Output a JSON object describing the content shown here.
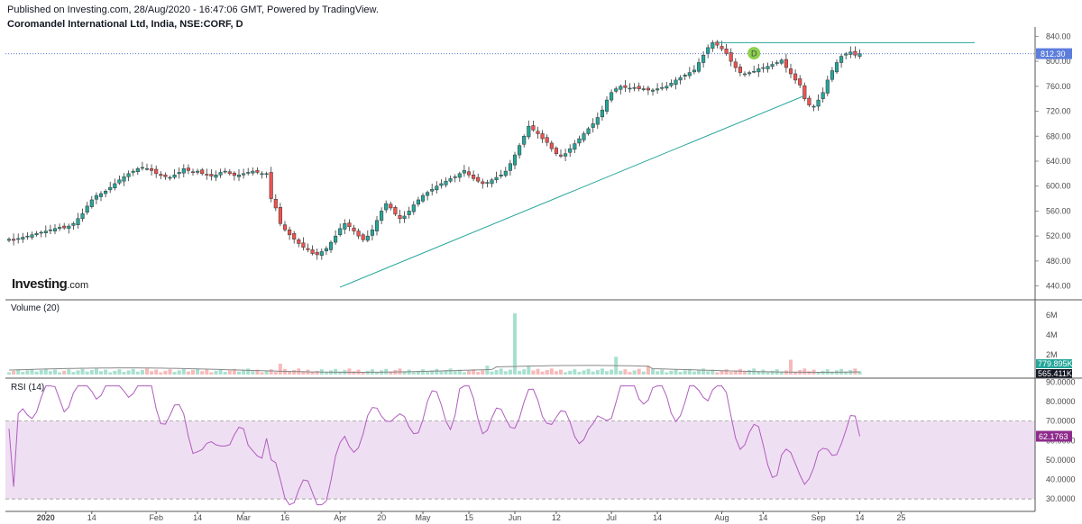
{
  "header": {
    "published": "Published on Investing.com, 28/Aug/2020 - 16:47:06 GMT, Powered by TradingView.",
    "instrument": "Coromandel International Ltd, India, NSE:CORF, D"
  },
  "logo": {
    "brand": "Investing",
    "suffix": ".com"
  },
  "colors": {
    "up": "#26a69a",
    "down": "#ef5350",
    "trendline": "#26a69a",
    "current_price": "#5c7ddc",
    "rsi_line": "#b05cc0",
    "rsi_band": "#efdff2",
    "vol_up": "#a8e0cf",
    "vol_down": "#f7b9b9",
    "vol_ma": "#888888",
    "marker": "#8bd14b"
  },
  "chart_data": [
    {
      "type": "candlestick",
      "pane": "price",
      "ylim": [
        425,
        855
      ],
      "y_ticks": [
        "840.00",
        "800.00",
        "760.00",
        "720.00",
        "680.00",
        "640.00",
        "600.00",
        "560.00",
        "520.00",
        "480.00",
        "440.00"
      ],
      "current_price_label": "812.30",
      "current_price": 812.3,
      "marker_label": "D",
      "marker_value": 813,
      "closes": [
        515,
        513,
        516,
        518,
        520,
        522,
        524,
        526,
        528,
        530,
        532,
        534,
        533,
        536,
        540,
        548,
        556,
        568,
        578,
        585,
        588,
        592,
        598,
        604,
        610,
        615,
        620,
        624,
        628,
        630,
        628,
        625,
        620,
        617,
        615,
        614,
        618,
        622,
        628,
        625,
        622,
        624,
        620,
        618,
        616,
        618,
        622,
        624,
        620,
        617,
        618,
        620,
        622,
        624,
        622,
        620,
        620,
        580,
        565,
        540,
        530,
        522,
        515,
        508,
        502,
        498,
        492,
        490,
        495,
        500,
        510,
        520,
        532,
        540,
        535,
        528,
        520,
        514,
        520,
        530,
        545,
        560,
        572,
        565,
        555,
        548,
        552,
        560,
        570,
        578,
        585,
        590,
        595,
        600,
        604,
        608,
        612,
        615,
        620,
        625,
        618,
        612,
        608,
        604,
        606,
        610,
        614,
        618,
        624,
        636,
        650,
        665,
        680,
        696,
        690,
        684,
        676,
        670,
        660,
        652,
        648,
        652,
        660,
        668,
        676,
        684,
        692,
        700,
        710,
        722,
        738,
        750,
        756,
        760,
        758,
        757,
        758,
        756,
        756,
        754,
        754,
        756,
        758,
        760,
        765,
        770,
        774,
        778,
        782,
        786,
        798,
        810,
        822,
        830,
        826,
        820,
        812,
        800,
        790,
        782,
        780,
        782,
        784,
        788,
        790,
        792,
        795,
        798,
        802,
        790,
        780,
        770,
        762,
        740,
        730,
        728,
        738,
        750,
        770,
        785,
        798,
        808,
        812,
        815,
        810,
        812.3
      ],
      "trendline_support": {
        "from": 438,
        "to": 745
      },
      "trendline_resistance": 830
    },
    {
      "type": "bar",
      "pane": "volume",
      "title": "Volume (20)",
      "ylim": [
        0,
        7200000
      ],
      "y_ticks": [
        "6M",
        "4M",
        "2M"
      ],
      "last_volume_label": "779.895K",
      "volume_ma_label": "565.411K",
      "spike_index": 110,
      "spike_value": 6200000,
      "base_value": 380000
    },
    {
      "type": "line",
      "pane": "rsi",
      "title": "RSI (14)",
      "ylim": [
        25,
        92
      ],
      "y_ticks": [
        "90.0000",
        "80.0000",
        "70.0000",
        "60.0000",
        "50.0000",
        "40.0000",
        "30.0000"
      ],
      "band": [
        30,
        70
      ],
      "last_value_label": "62.1763",
      "last_value": 62.1763
    }
  ],
  "x_axis": {
    "ticks": [
      {
        "label": "2020",
        "bold": true,
        "i": 8
      },
      {
        "label": "14",
        "i": 18
      },
      {
        "label": "Feb",
        "i": 32
      },
      {
        "label": "14",
        "i": 41
      },
      {
        "label": "Mar",
        "i": 51
      },
      {
        "label": "16",
        "i": 60
      },
      {
        "label": "Apr",
        "i": 72
      },
      {
        "label": "20",
        "i": 81
      },
      {
        "label": "May",
        "i": 90
      },
      {
        "label": "15",
        "i": 100
      },
      {
        "label": "Jun",
        "i": 110
      },
      {
        "label": "12",
        "i": 119
      },
      {
        "label": "Jul",
        "i": 131
      },
      {
        "label": "14",
        "i": 141
      },
      {
        "label": "Aug",
        "i": 155
      },
      {
        "label": "14",
        "i": 164
      },
      {
        "label": "Sep",
        "i": 176
      },
      {
        "label": "14",
        "i": 185
      },
      {
        "label": "25",
        "i": 194
      }
    ]
  }
}
